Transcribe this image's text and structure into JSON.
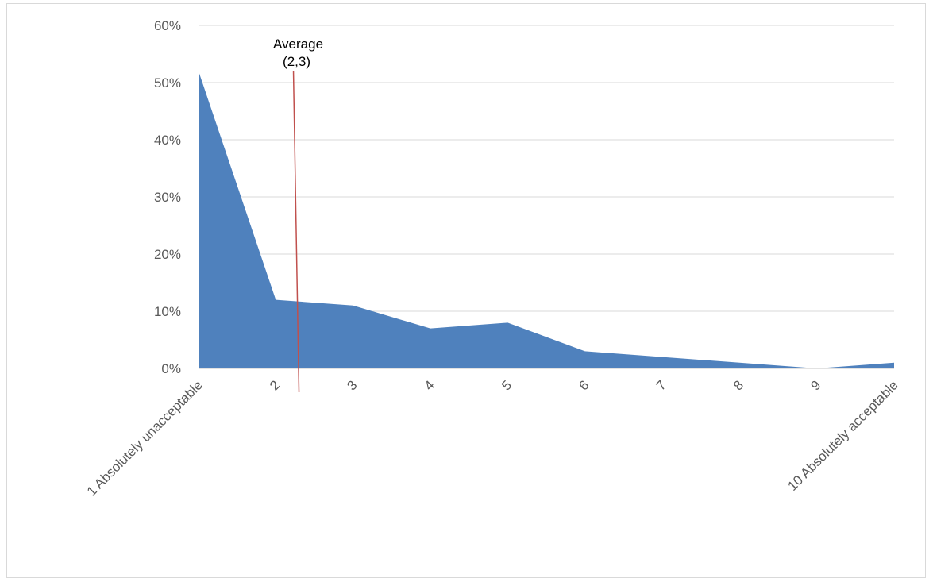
{
  "chart_data": {
    "type": "area",
    "categories": [
      "1 Absolutely unacceptable",
      "2",
      "3",
      "4",
      "5",
      "6",
      "7",
      "8",
      "9",
      "10 Absolutely acceptable"
    ],
    "series": [
      {
        "values": [
          52,
          12,
          11,
          7,
          8,
          3,
          2,
          1,
          0,
          1
        ]
      }
    ],
    "y_tick_labels": [
      "0%",
      "10%",
      "20%",
      "30%",
      "40%",
      "50%",
      "60%"
    ],
    "ylim": [
      0,
      60
    ],
    "grid": true,
    "annotation": {
      "text_line1": "Average",
      "text_line2": "(2,3)",
      "x": 2.3
    },
    "colors": {
      "area": "#4f81bd",
      "average_line": "#c0504d",
      "grid": "#d9d9d9",
      "axis": "#d9d9d9"
    }
  }
}
